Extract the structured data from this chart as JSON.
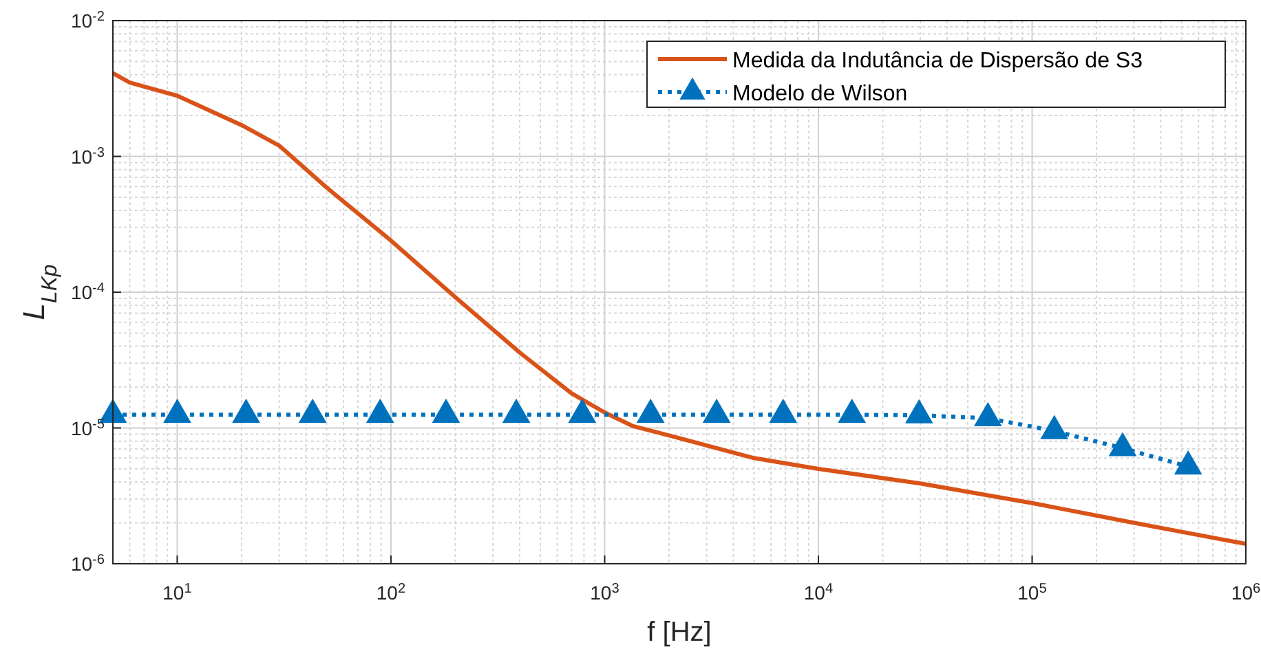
{
  "chart_data": {
    "type": "line",
    "xlabel": "f [Hz]",
    "ylabel": "L$_{LKp}$",
    "log": "xy",
    "grid": true,
    "legend": "top right",
    "xlim": [
      5,
      1000000
    ],
    "ylim": [
      1e-06,
      0.01
    ],
    "xticks": [
      {
        "value": 10,
        "label": "10$^{1}$"
      },
      {
        "value": 100,
        "label": "10$^{2}$"
      },
      {
        "value": 1000,
        "label": "10$^{3}$"
      },
      {
        "value": 10000,
        "label": "10$^{4}$"
      },
      {
        "value": 100000,
        "label": "10$^{5}$"
      },
      {
        "value": 1000000,
        "label": "10$^{6}$"
      }
    ],
    "yticks": [
      {
        "value": 1e-06,
        "label": "10$^{-6}$"
      },
      {
        "value": 1e-05,
        "label": "10$^{-5}$"
      },
      {
        "value": 0.0001,
        "label": "10$^{-4}$"
      },
      {
        "value": 0.001,
        "label": "10$^{-3}$"
      },
      {
        "value": 0.01,
        "label": "10$^{-2}$"
      }
    ],
    "series": [
      {
        "name": "Medida da Indutância de Dispersão de S3",
        "color": "#d95319",
        "marker": "none",
        "line_style": "solid",
        "x": [
          5,
          6,
          10,
          20,
          30,
          50,
          100,
          200,
          400,
          700,
          1000,
          1360,
          2000,
          5000,
          10000,
          30000,
          100000,
          300000,
          1000000
        ],
        "values": [
          0.0041,
          0.0035,
          0.0028,
          0.0017,
          0.0012,
          0.00059,
          0.00024,
          9.2e-05,
          3.6e-05,
          1.8e-05,
          1.3e-05,
          1.03e-05,
          8.8e-06,
          6e-06,
          5e-06,
          3.9e-06,
          2.8e-06,
          2e-06,
          1.4e-06
        ]
      },
      {
        "name": "Modelo de Wilson",
        "color": "#0072bd",
        "marker": "triangle",
        "line_style": "dotted",
        "x": [
          5,
          10,
          21,
          43,
          89,
          181,
          386,
          785,
          1640,
          3340,
          6840,
          14350,
          29600,
          62100,
          127000,
          265000,
          537000
        ],
        "values": [
          1.25e-05,
          1.25e-05,
          1.25e-05,
          1.25e-05,
          1.25e-05,
          1.25e-05,
          1.25e-05,
          1.25e-05,
          1.25e-05,
          1.25e-05,
          1.25e-05,
          1.25e-05,
          1.24e-05,
          1.18e-05,
          9.5e-06,
          7.1e-06,
          5.2e-06
        ]
      }
    ]
  }
}
